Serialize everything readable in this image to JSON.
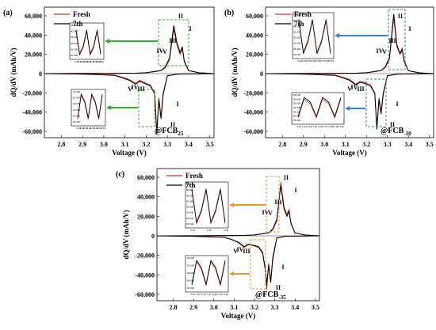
{
  "chart_data": [
    {
      "type": "line",
      "panel_letter": "(a)",
      "tag": "@FCB",
      "tag_sub": "25",
      "xlabel": "Voltage (V)",
      "ylabel": "dQ/dV (mAh/V)",
      "xlim": [
        2.72,
        3.52
      ],
      "ylim": [
        -75000,
        62000
      ],
      "xticks": [
        "2.8",
        "2.9",
        "3.0",
        "3.1",
        "3.2",
        "3.3",
        "3.4",
        "3.5"
      ],
      "yticks": [
        "60,000",
        "40,000",
        "20,000",
        "0",
        "-20,000",
        "-40,000",
        "-60,000"
      ],
      "legend": [
        "Fresh",
        "7th"
      ],
      "peak_labels": [
        "I",
        "II",
        "III",
        "IV",
        "V",
        "I",
        "II",
        "III",
        "IV",
        "V"
      ],
      "series": [
        {
          "name": "Fresh",
          "color": "#c0392b",
          "x": [
            2.72,
            3.0,
            3.15,
            3.2,
            3.24,
            3.27,
            3.29,
            3.31,
            3.33,
            3.345,
            3.36,
            3.37,
            3.38,
            3.4,
            3.45,
            3.52
          ],
          "y": [
            0,
            200,
            400,
            800,
            2000,
            3000,
            6000,
            14000,
            46000,
            30000,
            20000,
            26000,
            12000,
            3000,
            800,
            0
          ]
        },
        {
          "name": "7th",
          "color": "#000000",
          "x": [
            2.72,
            3.0,
            3.15,
            3.2,
            3.24,
            3.27,
            3.29,
            3.31,
            3.33,
            3.345,
            3.36,
            3.37,
            3.38,
            3.4,
            3.45,
            3.52
          ],
          "y": [
            0,
            200,
            400,
            900,
            2200,
            3200,
            7000,
            16000,
            50000,
            32000,
            22000,
            28000,
            13000,
            3000,
            800,
            0
          ]
        },
        {
          "name": "Fresh",
          "color": "#c0392b",
          "x": [
            3.52,
            3.35,
            3.3,
            3.28,
            3.27,
            3.26,
            3.25,
            3.245,
            3.24,
            3.22,
            3.19,
            3.17,
            3.15,
            3.12,
            3.09,
            3.05,
            2.9,
            2.72
          ],
          "y": [
            0,
            -500,
            -2000,
            -20000,
            -45000,
            -25000,
            -60000,
            -40000,
            -20000,
            -12000,
            -9000,
            -7000,
            -10000,
            -6000,
            -4000,
            -1500,
            -500,
            0
          ]
        },
        {
          "name": "7th",
          "color": "#000000",
          "x": [
            3.52,
            3.35,
            3.3,
            3.28,
            3.27,
            3.26,
            3.25,
            3.245,
            3.24,
            3.22,
            3.19,
            3.17,
            3.15,
            3.12,
            3.09,
            3.05,
            2.9,
            2.72
          ],
          "y": [
            0,
            -500,
            -2200,
            -22000,
            -47000,
            -27000,
            -63000,
            -42000,
            -21000,
            -13000,
            -10000,
            -8000,
            -11000,
            -7000,
            -4500,
            -1800,
            -500,
            0
          ]
        }
      ],
      "insets": {
        "upper": {
          "xticks": [
            "3.32",
            "3.33",
            "3.34",
            "3.35",
            "3.36",
            "3.37",
            "3.38",
            "3.39",
            "3.40"
          ],
          "yticks": [
            "45,000",
            "40,000",
            "35,000",
            "30,000",
            "25,000",
            "20,000"
          ]
        },
        "lower": {
          "xticks": [
            "3.21",
            "3.22",
            "3.23",
            "3.24",
            "3.25",
            "3.26",
            "3.27",
            "3.28"
          ],
          "yticks": [
            "-10,000",
            "-20,000",
            "-30,000",
            "-40,000",
            "-50,000",
            "-60,000"
          ]
        }
      }
    },
    {
      "type": "line",
      "panel_letter": "(b)",
      "tag": "@FCB",
      "tag_sub": "-10",
      "xlabel": "Voltage (V)",
      "ylabel": "dQ/dV (mAh/V)",
      "xlim": [
        2.72,
        3.52
      ],
      "ylim": [
        -75000,
        62000
      ],
      "xticks": [
        "2.8",
        "2.9",
        "3.0",
        "3.1",
        "3.2",
        "3.3",
        "3.4",
        "3.5"
      ],
      "yticks": [
        "60,000",
        "40,000",
        "20,000",
        "0",
        "-20,000",
        "-40,000",
        "-60,000"
      ],
      "legend": [
        "Fresh",
        "7th"
      ],
      "peak_labels": [
        "I",
        "II",
        "III",
        "IV",
        "V",
        "I",
        "II",
        "III",
        "IV",
        "V"
      ],
      "series": [
        {
          "name": "Fresh",
          "color": "#c0392b",
          "x": [
            2.72,
            3.0,
            3.15,
            3.2,
            3.24,
            3.27,
            3.29,
            3.31,
            3.33,
            3.345,
            3.36,
            3.37,
            3.38,
            3.4,
            3.45,
            3.52
          ],
          "y": [
            0,
            200,
            400,
            800,
            2000,
            3000,
            6000,
            15000,
            58000,
            28000,
            20000,
            24000,
            12000,
            3000,
            800,
            0
          ]
        },
        {
          "name": "7th",
          "color": "#000000",
          "x": [
            2.72,
            3.0,
            3.15,
            3.2,
            3.24,
            3.27,
            3.29,
            3.31,
            3.33,
            3.345,
            3.36,
            3.37,
            3.38,
            3.4,
            3.45,
            3.52
          ],
          "y": [
            0,
            200,
            400,
            900,
            2200,
            3200,
            7000,
            17000,
            62000,
            30000,
            21000,
            26000,
            13000,
            3000,
            800,
            0
          ]
        },
        {
          "name": "Fresh",
          "color": "#c0392b",
          "x": [
            3.52,
            3.35,
            3.3,
            3.28,
            3.27,
            3.26,
            3.25,
            3.245,
            3.24,
            3.22,
            3.19,
            3.17,
            3.15,
            3.12,
            3.09,
            3.05,
            2.9,
            2.72
          ],
          "y": [
            0,
            -500,
            -2000,
            -20000,
            -40000,
            -25000,
            -55000,
            -38000,
            -20000,
            -12000,
            -9000,
            -8000,
            -11000,
            -6000,
            -4000,
            -1500,
            -500,
            0
          ]
        },
        {
          "name": "7th",
          "color": "#000000",
          "x": [
            3.52,
            3.35,
            3.3,
            3.28,
            3.27,
            3.26,
            3.25,
            3.245,
            3.24,
            3.22,
            3.19,
            3.17,
            3.15,
            3.12,
            3.09,
            3.05,
            2.9,
            2.72
          ],
          "y": [
            0,
            -500,
            -2200,
            -22000,
            -42000,
            -27000,
            -58000,
            -40000,
            -21000,
            -13000,
            -10000,
            -9000,
            -12000,
            -7000,
            -4500,
            -1800,
            -500,
            0
          ]
        }
      ],
      "insets": {
        "upper": {
          "xticks": [
            "3.32",
            "3.33",
            "3.34",
            "3.35",
            "3.36",
            "3.37",
            "3.38",
            "3.39"
          ],
          "yticks": [
            "55,000",
            "50,000",
            "45,000",
            "40,000",
            "35,000",
            "30,000",
            "25,000",
            "20,000"
          ]
        },
        "lower": {
          "xticks": [
            "3.22",
            "3.23",
            "3.24",
            "3.25",
            "3.26",
            "3.27",
            "3.28",
            "3.29",
            "3.30"
          ],
          "yticks": [
            "-25,000",
            "-30,000",
            "-35,000",
            "-40,000",
            "-45,000",
            "-50,000",
            "-55,000"
          ]
        }
      }
    },
    {
      "type": "line",
      "panel_letter": "(c)",
      "tag": "@FCB",
      "tag_sub": "-35",
      "xlabel": "Voltage (V)",
      "ylabel": "dQ/dV (mAh/V)",
      "xlim": [
        2.72,
        3.52
      ],
      "ylim": [
        -75000,
        70000
      ],
      "xticks": [
        "2.8",
        "2.9",
        "3.0",
        "3.1",
        "3.2",
        "3.3",
        "3.4",
        "3.5"
      ],
      "yticks": [
        "60,000",
        "40,000",
        "20,000",
        "0",
        "-20,000",
        "-40,000",
        "-60,000"
      ],
      "legend": [
        "Fresh",
        "7th"
      ],
      "peak_labels": [
        "I",
        "II",
        "III",
        "IV",
        "V",
        "I",
        "II",
        "III",
        "IV",
        "V"
      ],
      "series": [
        {
          "name": "Fresh",
          "color": "#c0392b",
          "x": [
            2.72,
            3.0,
            3.15,
            3.2,
            3.24,
            3.27,
            3.29,
            3.31,
            3.33,
            3.345,
            3.36,
            3.37,
            3.38,
            3.4,
            3.45,
            3.52
          ],
          "y": [
            0,
            200,
            400,
            800,
            2000,
            3000,
            6000,
            15000,
            55000,
            30000,
            22000,
            27000,
            12000,
            3000,
            800,
            0
          ]
        },
        {
          "name": "7th",
          "color": "#000000",
          "x": [
            2.72,
            3.0,
            3.15,
            3.2,
            3.24,
            3.27,
            3.29,
            3.31,
            3.33,
            3.345,
            3.36,
            3.37,
            3.38,
            3.4,
            3.45,
            3.52
          ],
          "y": [
            0,
            200,
            400,
            900,
            2200,
            3200,
            7000,
            17000,
            52000,
            28000,
            20000,
            25000,
            13000,
            3000,
            800,
            0
          ]
        },
        {
          "name": "Fresh",
          "color": "#c0392b",
          "x": [
            3.52,
            3.35,
            3.31,
            3.29,
            3.28,
            3.27,
            3.26,
            3.255,
            3.24,
            3.22,
            3.19,
            3.17,
            3.15,
            3.12,
            3.09,
            3.05,
            2.9,
            2.72
          ],
          "y": [
            0,
            -500,
            -2000,
            -25000,
            -45000,
            -28000,
            -55000,
            -38000,
            -18000,
            -12000,
            -10000,
            -9000,
            -12000,
            -7000,
            -4000,
            -1500,
            -500,
            0
          ]
        },
        {
          "name": "7th",
          "color": "#000000",
          "x": [
            3.52,
            3.35,
            3.31,
            3.29,
            3.28,
            3.27,
            3.26,
            3.255,
            3.24,
            3.22,
            3.19,
            3.17,
            3.15,
            3.12,
            3.09,
            3.05,
            2.9,
            2.72
          ],
          "y": [
            0,
            -500,
            -2200,
            -22000,
            -48000,
            -30000,
            -50000,
            -36000,
            -17000,
            -11000,
            -9500,
            -8500,
            -11000,
            -6500,
            -4000,
            -1500,
            -500,
            0
          ]
        }
      ],
      "insets": {
        "upper": {
          "xticks": [
            "3.34",
            "3.36",
            "3.38"
          ],
          "yticks": [
            "55,000",
            "50,000",
            "45,000",
            "40,000",
            "35,000",
            "30,000",
            "25,000",
            "20,000"
          ]
        },
        "lower": {
          "xticks": [
            "3.24",
            "3.25",
            "3.26",
            "3.27",
            "3.28",
            "3.29",
            "3.30"
          ],
          "yticks": [
            "-30,000",
            "-35,000",
            "-40,000",
            "-45,000",
            "-50,000"
          ]
        }
      }
    }
  ]
}
